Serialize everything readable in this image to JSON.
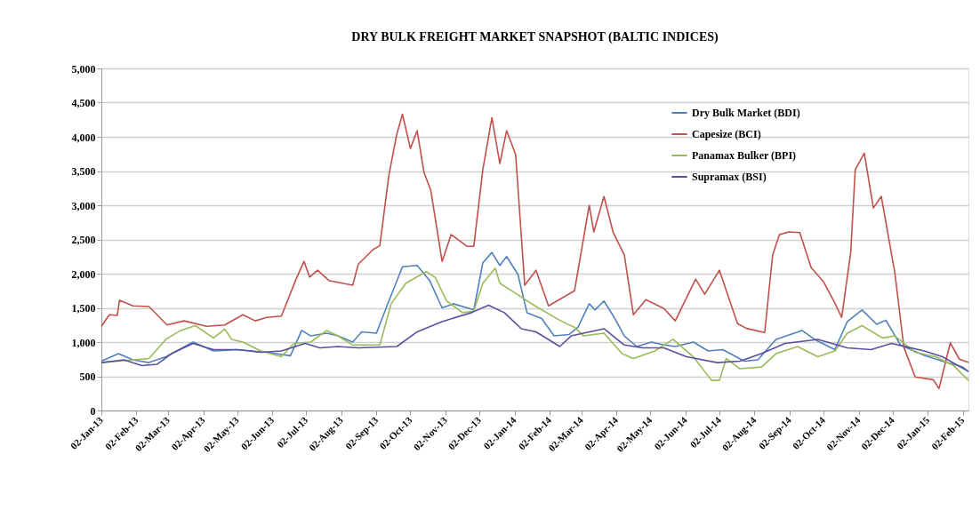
{
  "chart_data": {
    "type": "line",
    "title": "DRY BULK FREIGHT MARKET SNAPSHOT (BALTIC INDICES)",
    "series": [
      {
        "name": "Dry Bulk Market (BDI)",
        "color": "#4f81bd",
        "x": [
          "2013-01-02",
          "2013-01-17",
          "2013-01-30",
          "2013-02-13",
          "2013-02-28",
          "2013-03-24",
          "2013-04-11",
          "2013-05-02",
          "2013-05-28",
          "2013-06-18",
          "2013-06-28",
          "2013-07-06",
          "2013-07-20",
          "2013-07-30",
          "2013-08-12",
          "2013-08-20",
          "2013-09-02",
          "2013-09-13",
          "2013-09-25",
          "2013-10-08",
          "2013-10-19",
          "2013-10-30",
          "2013-11-09",
          "2013-11-27",
          "2013-12-05",
          "2013-12-13",
          "2013-12-20",
          "2013-12-26",
          "2014-01-05",
          "2014-01-13",
          "2014-01-26",
          "2014-02-06",
          "2014-02-19",
          "2014-02-27",
          "2014-03-09",
          "2014-03-14",
          "2014-03-22",
          "2014-03-30",
          "2014-04-09",
          "2014-04-20",
          "2014-05-03",
          "2014-05-14",
          "2014-05-24",
          "2014-06-09",
          "2014-06-22",
          "2014-07-05",
          "2014-07-24",
          "2014-08-05",
          "2014-08-21",
          "2014-09-13",
          "2014-09-24",
          "2014-10-12",
          "2014-10-23",
          "2014-11-05",
          "2014-11-18",
          "2014-11-26",
          "2014-12-09",
          "2014-12-30",
          "2015-01-15",
          "2015-02-02",
          "2015-02-07"
        ],
        "values": [
          720,
          830,
          740,
          700,
          785,
          1000,
          870,
          890,
          850,
          800,
          1170,
          1090,
          1130,
          1090,
          1000,
          1150,
          1130,
          1600,
          2100,
          2120,
          1900,
          1500,
          1560,
          1470,
          2160,
          2310,
          2120,
          2250,
          1990,
          1430,
          1345,
          1090,
          1110,
          1215,
          1560,
          1470,
          1600,
          1390,
          1090,
          935,
          1000,
          957,
          935,
          1000,
          870,
          890,
          720,
          740,
          1040,
          1170,
          1040,
          890,
          1300,
          1470,
          1260,
          1320,
          957,
          805,
          720,
          635,
          570
        ]
      },
      {
        "name": "Capesize (BCI)",
        "color": "#c0504d",
        "x": [
          "2013-01-02",
          "2013-01-09",
          "2013-01-16",
          "2013-01-18",
          "2013-01-30",
          "2013-02-13",
          "2013-03-01",
          "2013-03-16",
          "2013-04-05",
          "2013-04-21",
          "2013-05-07",
          "2013-05-18",
          "2013-05-28",
          "2013-06-10",
          "2013-06-23",
          "2013-06-30",
          "2013-07-05",
          "2013-07-12",
          "2013-07-22",
          "2013-08-12",
          "2013-08-17",
          "2013-08-30",
          "2013-09-05",
          "2013-09-13",
          "2013-09-20",
          "2013-09-25",
          "2013-10-02",
          "2013-10-08",
          "2013-10-14",
          "2013-10-20",
          "2013-10-30",
          "2013-11-07",
          "2013-11-21",
          "2013-11-27",
          "2013-12-05",
          "2013-12-13",
          "2013-12-20",
          "2013-12-26",
          "2014-01-03",
          "2014-01-11",
          "2014-01-21",
          "2014-02-01",
          "2014-02-24",
          "2014-03-09",
          "2014-03-13",
          "2014-03-22",
          "2014-03-30",
          "2014-04-09",
          "2014-04-17",
          "2014-04-28",
          "2014-05-14",
          "2014-05-24",
          "2014-06-11",
          "2014-06-19",
          "2014-07-02",
          "2014-07-18",
          "2014-07-26",
          "2014-08-11",
          "2014-08-18",
          "2014-08-24",
          "2014-09-01",
          "2014-09-11",
          "2014-09-21",
          "2014-10-02",
          "2014-10-12",
          "2014-10-18",
          "2014-10-26",
          "2014-10-30",
          "2014-11-07",
          "2014-11-15",
          "2014-11-22",
          "2014-12-04",
          "2014-12-12",
          "2014-12-22",
          "2015-01-07",
          "2015-01-12",
          "2015-01-22",
          "2015-01-30",
          "2015-02-07"
        ],
        "values": [
          1230,
          1400,
          1390,
          1610,
          1530,
          1520,
          1250,
          1310,
          1230,
          1250,
          1400,
          1310,
          1360,
          1380,
          1920,
          2180,
          1950,
          2050,
          1900,
          1830,
          2140,
          2350,
          2410,
          3440,
          4040,
          4330,
          3830,
          4090,
          3480,
          3220,
          2180,
          2570,
          2400,
          2400,
          3520,
          4280,
          3610,
          4090,
          3740,
          1830,
          2050,
          1530,
          1750,
          3000,
          2610,
          3130,
          2610,
          2270,
          1400,
          1620,
          1490,
          1310,
          1920,
          1700,
          2050,
          1270,
          1200,
          1140,
          2270,
          2570,
          2610,
          2600,
          2090,
          1880,
          1570,
          1360,
          2310,
          3520,
          3760,
          2960,
          3130,
          2010,
          920,
          490,
          450,
          320,
          990,
          750,
          700
        ]
      },
      {
        "name": "Panamax Bulker (BPI)",
        "color": "#9bbb59",
        "x": [
          "2013-01-02",
          "2013-01-30",
          "2013-02-13",
          "2013-02-28",
          "2013-03-13",
          "2013-03-26",
          "2013-04-11",
          "2013-04-21",
          "2013-04-27",
          "2013-05-07",
          "2013-05-23",
          "2013-06-10",
          "2013-06-21",
          "2013-07-06",
          "2013-07-20",
          "2013-07-30",
          "2013-08-12",
          "2013-09-05",
          "2013-09-15",
          "2013-09-28",
          "2013-10-16",
          "2013-10-24",
          "2013-11-03",
          "2013-11-17",
          "2013-11-27",
          "2013-12-05",
          "2013-12-16",
          "2013-12-20",
          "2014-01-05",
          "2014-01-21",
          "2014-02-13",
          "2014-02-24",
          "2014-03-04",
          "2014-03-22",
          "2014-04-07",
          "2014-04-17",
          "2014-05-06",
          "2014-05-22",
          "2014-06-09",
          "2014-06-25",
          "2014-07-02",
          "2014-07-08",
          "2014-07-20",
          "2014-08-08",
          "2014-08-21",
          "2014-09-09",
          "2014-09-27",
          "2014-10-12",
          "2014-10-23",
          "2014-11-05",
          "2014-11-23",
          "2014-12-04",
          "2014-12-22",
          "2015-01-09",
          "2015-01-25",
          "2015-02-07"
        ],
        "values": [
          700,
          740,
          760,
          1040,
          1170,
          1240,
          1060,
          1190,
          1040,
          1000,
          870,
          785,
          980,
          1000,
          1170,
          1090,
          957,
          957,
          1560,
          1860,
          2030,
          1945,
          1600,
          1430,
          1450,
          1860,
          2080,
          1860,
          1690,
          1520,
          1300,
          1215,
          1090,
          1130,
          830,
          760,
          870,
          1040,
          785,
          440,
          440,
          760,
          610,
          635,
          830,
          935,
          785,
          870,
          1130,
          1240,
          1060,
          1090,
          850,
          785,
          655,
          440
        ]
      },
      {
        "name": "Supramax (BSI)",
        "color": "#5a4fa0",
        "x": [
          "2013-01-02",
          "2013-01-22",
          "2013-02-07",
          "2013-02-20",
          "2013-03-05",
          "2013-03-24",
          "2013-04-11",
          "2013-05-02",
          "2013-05-23",
          "2013-06-10",
          "2013-07-01",
          "2013-07-14",
          "2013-07-30",
          "2013-08-17",
          "2013-09-20",
          "2013-10-08",
          "2013-10-30",
          "2013-11-25",
          "2013-12-10",
          "2013-12-24",
          "2014-01-08",
          "2014-01-21",
          "2014-02-11",
          "2014-02-21",
          "2014-03-22",
          "2014-04-09",
          "2014-04-25",
          "2014-05-14",
          "2014-06-03",
          "2014-06-30",
          "2014-07-20",
          "2014-08-08",
          "2014-08-29",
          "2014-09-27",
          "2014-10-23",
          "2014-11-13",
          "2014-12-01",
          "2014-12-30",
          "2015-01-15",
          "2015-02-07"
        ],
        "values": [
          700,
          740,
          655,
          675,
          830,
          980,
          890,
          890,
          850,
          870,
          980,
          915,
          935,
          915,
          935,
          1150,
          1300,
          1430,
          1540,
          1430,
          1195,
          1150,
          935,
          1090,
          1195,
          957,
          915,
          915,
          785,
          700,
          720,
          830,
          980,
          1040,
          915,
          890,
          980,
          870,
          785,
          570
        ]
      }
    ],
    "xlim": [
      "2013-01-02",
      "2015-02-07"
    ],
    "xticks": [
      {
        "value": "2013-01-02",
        "label": "02-Jan-13"
      },
      {
        "value": "2013-02-02",
        "label": "02-Feb-13"
      },
      {
        "value": "2013-03-02",
        "label": "02-Mar-13"
      },
      {
        "value": "2013-04-02",
        "label": "02-Apr-13"
      },
      {
        "value": "2013-05-02",
        "label": "02-May-13"
      },
      {
        "value": "2013-06-02",
        "label": "02-Jun-13"
      },
      {
        "value": "2013-07-02",
        "label": "02-Jul-13"
      },
      {
        "value": "2013-08-02",
        "label": "02-Aug-13"
      },
      {
        "value": "2013-09-02",
        "label": "02-Sep-13"
      },
      {
        "value": "2013-10-02",
        "label": "02-Oct-13"
      },
      {
        "value": "2013-11-02",
        "label": "02-Nov-13"
      },
      {
        "value": "2013-12-02",
        "label": "02-Dec-13"
      },
      {
        "value": "2014-01-02",
        "label": "02-Jan-14"
      },
      {
        "value": "2014-02-02",
        "label": "02-Feb-14"
      },
      {
        "value": "2014-03-02",
        "label": "02-Mar-14"
      },
      {
        "value": "2014-04-02",
        "label": "02-Apr-14"
      },
      {
        "value": "2014-05-02",
        "label": "02-May-14"
      },
      {
        "value": "2014-06-02",
        "label": "02-Jun-14"
      },
      {
        "value": "2014-07-02",
        "label": "02-Jul-14"
      },
      {
        "value": "2014-08-02",
        "label": "02-Aug-14"
      },
      {
        "value": "2014-09-02",
        "label": "02-Sep-14"
      },
      {
        "value": "2014-10-02",
        "label": "02-Oct-14"
      },
      {
        "value": "2014-11-02",
        "label": "02-Nov-14"
      },
      {
        "value": "2014-12-02",
        "label": "02-Dec-14"
      },
      {
        "value": "2015-01-02",
        "label": "02-Jan-15"
      },
      {
        "value": "2015-02-02",
        "label": "02-Feb-15"
      }
    ],
    "ylim": [
      0,
      5000
    ],
    "yticks": [
      0,
      500,
      {
        "value": 1000,
        "label": "1,000"
      },
      {
        "value": 1500,
        "label": "1,500"
      },
      {
        "value": 2000,
        "label": "2,000"
      },
      {
        "value": 2500,
        "label": "2,500"
      },
      {
        "value": 3000,
        "label": "3,000"
      },
      {
        "value": 3500,
        "label": "3,500"
      },
      {
        "value": 4000,
        "label": "4,000"
      },
      {
        "value": 4500,
        "label": "4,500"
      },
      {
        "value": 5000,
        "label": "5,000"
      }
    ],
    "grid": "y",
    "legend": "top right",
    "marker": "none",
    "line_style": "solid"
  }
}
